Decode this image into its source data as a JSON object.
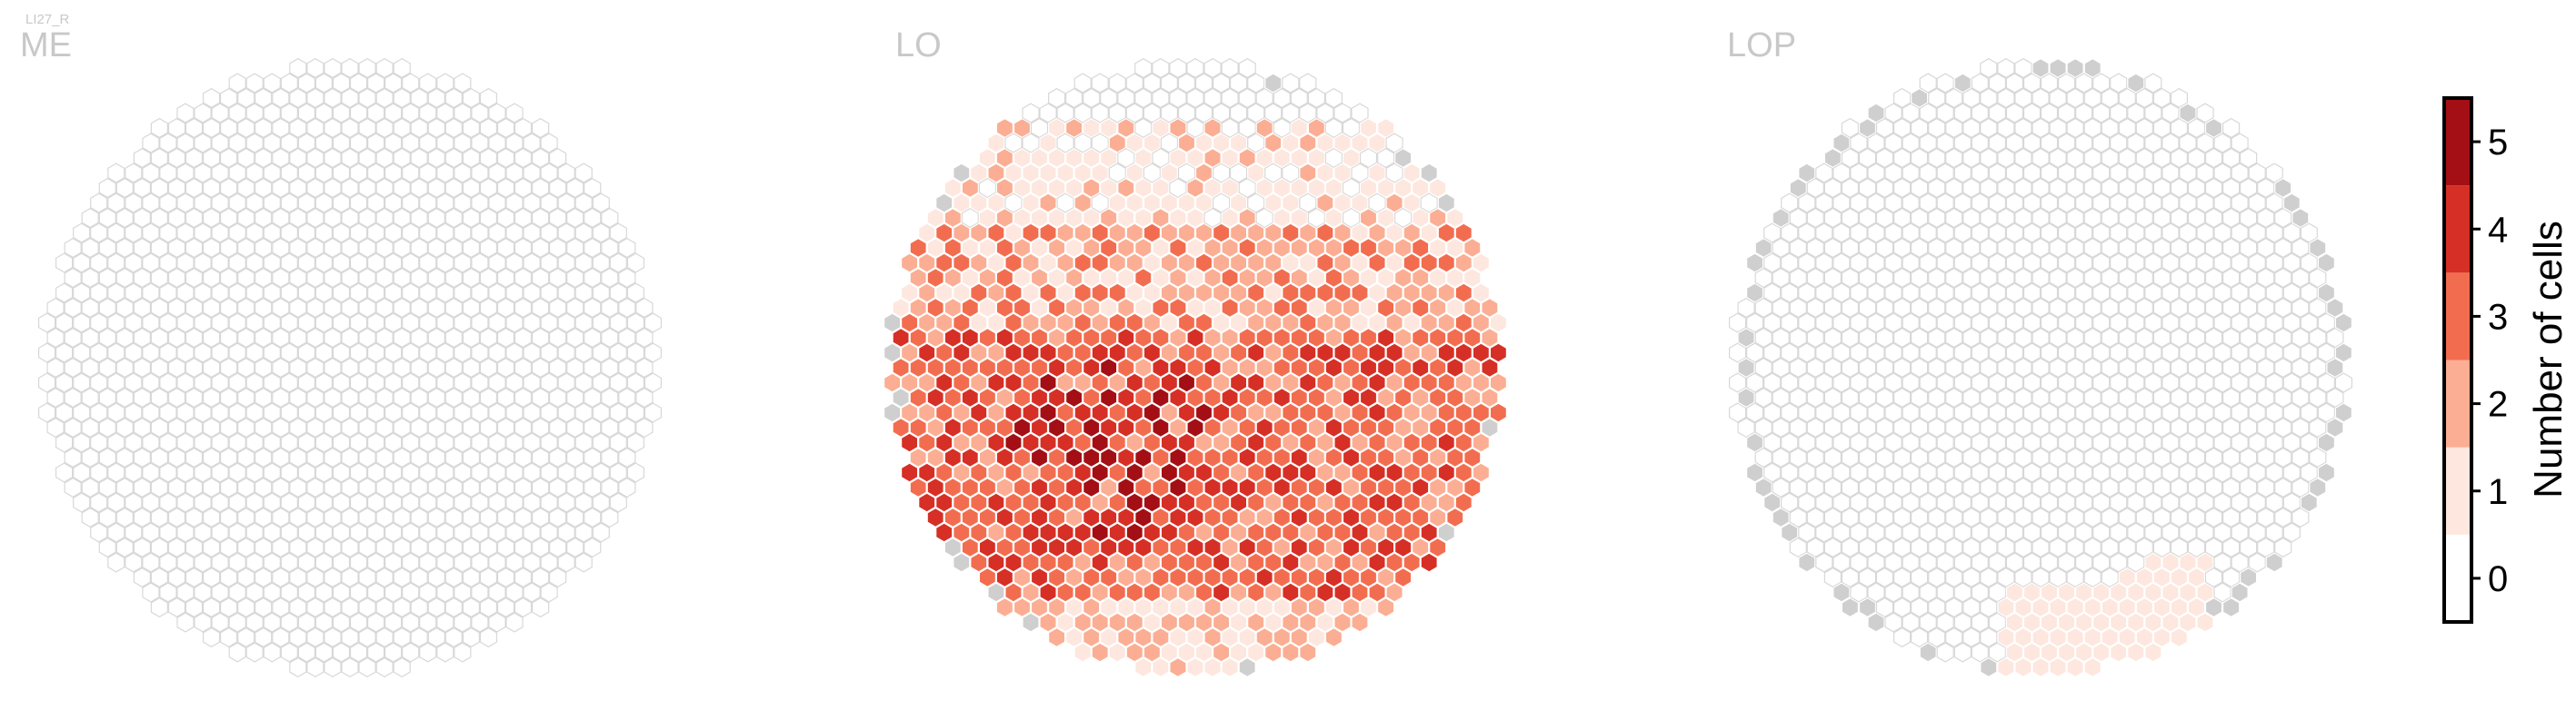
{
  "figure": {
    "corner_label": "LI27_R"
  },
  "colors": {
    "level_0": "#ffffff",
    "level_1": "#fde7df",
    "level_2": "#fbae93",
    "level_3": "#f26d50",
    "level_4": "#d62f26",
    "level_5": "#a30f14",
    "no_data_fill": "#cfcfcf",
    "hex_outline": "#d8d8d8",
    "panel_title": "#c8c8c8"
  },
  "chart_data": [
    {
      "type": "heatmap",
      "subtype": "hexagonal column map",
      "title": "ME",
      "radius_rows": 28,
      "cells_nonzero": [
        {
          "q": 22,
          "r": -5,
          "v": 1
        },
        {
          "q": 22,
          "r": -1,
          "v": 1
        }
      ],
      "cells_no_data": [],
      "default_value": 0
    },
    {
      "type": "heatmap",
      "subtype": "hexagonal column map",
      "title": "LO",
      "radius_rows": 28,
      "density_profile": "low (0-1) in the upper region, medium (2-3) in the middle band, high (3-5) in the lower-left centre",
      "cells_no_data_count": 14,
      "default_value": 0
    },
    {
      "type": "heatmap",
      "subtype": "hexagonal column map",
      "title": "LOP",
      "radius_rows": 28,
      "cells_nonzero_region": "small band of value 1 near the bottom-right rim",
      "cells_no_data_region": "grey hexagons along the outer rim",
      "default_value": 0
    }
  ],
  "colorbar": {
    "label": "Number of cells",
    "ticks": [
      "0",
      "1",
      "2",
      "3",
      "4",
      "5"
    ],
    "range": [
      -0.5,
      5.5
    ]
  }
}
